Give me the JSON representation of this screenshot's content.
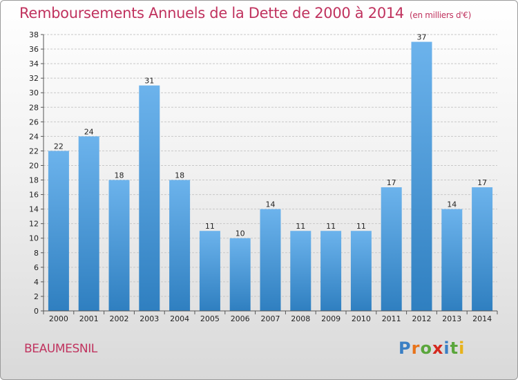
{
  "title": "Remboursements Annuels de la Dette de 2000 à 2014",
  "unit": "(en milliers d'€)",
  "commune": "BEAUMESNIL",
  "logo": {
    "letters": [
      "P",
      "r",
      "o",
      "x",
      "i",
      "t",
      "i"
    ],
    "colors": [
      "#3a7fc4",
      "#e8731a",
      "#5aa63c",
      "#d4281e",
      "#3a7fc4",
      "#5aa63c",
      "#e8b21a"
    ]
  },
  "colors": {
    "bar_top": "#6cb3ec",
    "bar_bottom": "#2f7fc0",
    "grid": "#c8c8c8"
  },
  "chart_data": {
    "type": "bar",
    "title": "Remboursements Annuels de la Dette de 2000 à 2014",
    "categories": [
      "2000",
      "2001",
      "2002",
      "2003",
      "2004",
      "2005",
      "2006",
      "2007",
      "2008",
      "2009",
      "2010",
      "2011",
      "2012",
      "2013",
      "2014"
    ],
    "values": [
      22,
      24,
      18,
      31,
      18,
      11,
      10,
      14,
      11,
      11,
      11,
      17,
      37,
      14,
      17
    ],
    "ylim": [
      0,
      38
    ],
    "yticks": [
      0,
      2,
      4,
      6,
      8,
      10,
      12,
      14,
      16,
      18,
      20,
      22,
      24,
      26,
      28,
      30,
      32,
      34,
      36,
      38
    ],
    "grid": true,
    "data_labels": true
  }
}
